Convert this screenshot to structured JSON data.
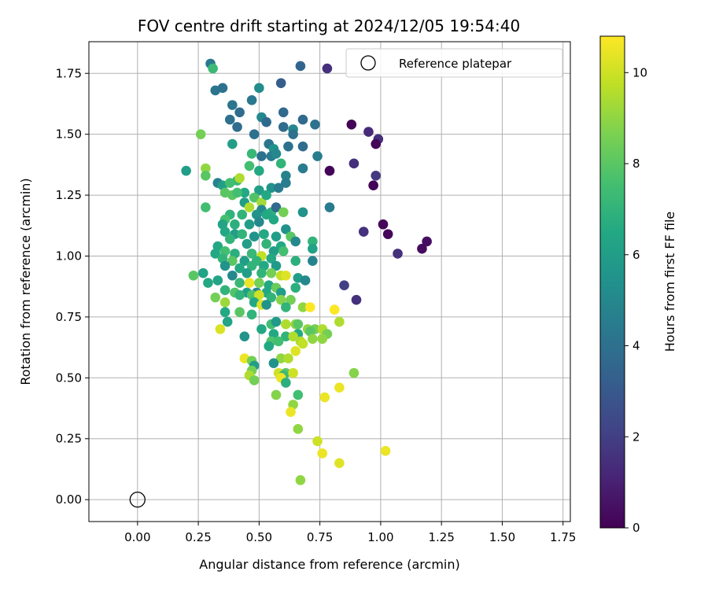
{
  "chart_data": {
    "type": "scatter",
    "title": "FOV centre drift starting at 2024/12/05 19:54:40",
    "xlabel": "Angular distance from reference (arcmin)",
    "ylabel": "Rotation from reference (arcmin)",
    "xlim": [
      -0.2,
      1.78
    ],
    "ylim": [
      -0.09,
      1.88
    ],
    "xticks": [
      0.0,
      0.25,
      0.5,
      0.75,
      1.0,
      1.25,
      1.5,
      1.75
    ],
    "xtick_labels": [
      "0.00",
      "0.25",
      "0.50",
      "0.75",
      "1.00",
      "1.25",
      "1.50",
      "1.75"
    ],
    "yticks": [
      0.0,
      0.25,
      0.5,
      0.75,
      1.0,
      1.25,
      1.5,
      1.75
    ],
    "ytick_labels": [
      "0.00",
      "0.25",
      "0.50",
      "0.75",
      "1.00",
      "1.25",
      "1.50",
      "1.75"
    ],
    "grid": true,
    "legend": {
      "position": "top-right",
      "entries": [
        "Reference platepar"
      ]
    },
    "reference_point": {
      "x": 0.0,
      "y": 0.0
    },
    "colorbar": {
      "label": "Hours from first FF file",
      "colormap": "viridis",
      "range": [
        0,
        10.8
      ],
      "ticks": [
        0,
        2,
        4,
        6,
        8,
        10
      ],
      "tick_labels": [
        "0",
        "2",
        "4",
        "6",
        "8",
        "10"
      ]
    },
    "points": [
      [
        0.3,
        1.79,
        4.3
      ],
      [
        0.31,
        1.77,
        7.3
      ],
      [
        0.67,
        1.78,
        3.5
      ],
      [
        0.78,
        1.77,
        1.5
      ],
      [
        0.59,
        1.71,
        3.2
      ],
      [
        0.5,
        1.69,
        5.2
      ],
      [
        0.32,
        1.68,
        4.2
      ],
      [
        0.35,
        1.69,
        4.0
      ],
      [
        0.47,
        1.64,
        4.3
      ],
      [
        0.39,
        1.62,
        4.2
      ],
      [
        0.42,
        1.59,
        3.8
      ],
      [
        0.6,
        1.59,
        3.7
      ],
      [
        0.38,
        1.56,
        4.0
      ],
      [
        0.51,
        1.57,
        5.0
      ],
      [
        0.41,
        1.53,
        3.8
      ],
      [
        0.53,
        1.55,
        3.7
      ],
      [
        0.6,
        1.53,
        3.8
      ],
      [
        0.64,
        1.52,
        5.0
      ],
      [
        0.68,
        1.56,
        3.7
      ],
      [
        0.73,
        1.54,
        4.0
      ],
      [
        0.88,
        1.54,
        0.1
      ],
      [
        0.95,
        1.51,
        1.3
      ],
      [
        0.26,
        1.5,
        8.5
      ],
      [
        0.48,
        1.5,
        4.0
      ],
      [
        0.64,
        1.5,
        4.0
      ],
      [
        0.99,
        1.48,
        1.5
      ],
      [
        0.98,
        1.46,
        0.1
      ],
      [
        0.39,
        1.46,
        6.0
      ],
      [
        0.54,
        1.46,
        4.2
      ],
      [
        0.56,
        1.44,
        5.5
      ],
      [
        0.62,
        1.45,
        4.0
      ],
      [
        0.68,
        1.45,
        3.8
      ],
      [
        0.51,
        1.41,
        4.0
      ],
      [
        0.55,
        1.41,
        4.5
      ],
      [
        0.57,
        1.42,
        5.0
      ],
      [
        0.47,
        1.42,
        7.2
      ],
      [
        0.74,
        1.41,
        4.5
      ],
      [
        0.59,
        1.38,
        7.0
      ],
      [
        0.89,
        1.38,
        1.5
      ],
      [
        0.2,
        1.35,
        6.0
      ],
      [
        0.28,
        1.36,
        9.0
      ],
      [
        0.46,
        1.37,
        7.5
      ],
      [
        0.5,
        1.35,
        6.5
      ],
      [
        0.79,
        1.35,
        0.1
      ],
      [
        0.68,
        1.36,
        4.5
      ],
      [
        0.61,
        1.33,
        4.8
      ],
      [
        0.41,
        1.31,
        7.2
      ],
      [
        0.28,
        1.33,
        8.0
      ],
      [
        0.33,
        1.3,
        4.8
      ],
      [
        0.98,
        1.33,
        1.8
      ],
      [
        0.35,
        1.29,
        6.0
      ],
      [
        0.38,
        1.3,
        7.5
      ],
      [
        0.42,
        1.32,
        9.5
      ],
      [
        0.44,
        1.26,
        6.5
      ],
      [
        0.5,
        1.27,
        6.0
      ],
      [
        0.55,
        1.28,
        5.5
      ],
      [
        0.58,
        1.28,
        4.5
      ],
      [
        0.61,
        1.3,
        4.5
      ],
      [
        0.97,
        1.29,
        0.1
      ],
      [
        0.36,
        1.26,
        8.0
      ],
      [
        0.39,
        1.25,
        8.0
      ],
      [
        0.41,
        1.26,
        7.5
      ],
      [
        0.48,
        1.24,
        7.8
      ],
      [
        0.51,
        1.22,
        9.3
      ],
      [
        0.53,
        1.25,
        6.5
      ],
      [
        0.44,
        1.22,
        6.0
      ],
      [
        0.46,
        1.2,
        9.5
      ],
      [
        0.51,
        1.19,
        5.0
      ],
      [
        0.55,
        1.18,
        6.8
      ],
      [
        0.57,
        1.2,
        3.7
      ],
      [
        0.28,
        1.2,
        7.5
      ],
      [
        0.38,
        1.17,
        7.0
      ],
      [
        0.36,
        1.15,
        7.6
      ],
      [
        0.43,
        1.17,
        7.0
      ],
      [
        0.49,
        1.17,
        5.5
      ],
      [
        0.53,
        1.17,
        6.5
      ],
      [
        0.6,
        1.18,
        8.5
      ],
      [
        0.68,
        1.18,
        5.5
      ],
      [
        0.79,
        1.2,
        4.5
      ],
      [
        0.35,
        1.13,
        6.3
      ],
      [
        0.4,
        1.13,
        6.8
      ],
      [
        0.46,
        1.13,
        6.0
      ],
      [
        0.5,
        1.14,
        5.0
      ],
      [
        0.56,
        1.15,
        6.5
      ],
      [
        0.61,
        1.11,
        5.5
      ],
      [
        1.01,
        1.13,
        0.2
      ],
      [
        0.36,
        1.1,
        6.5
      ],
      [
        0.4,
        1.09,
        6.0
      ],
      [
        0.43,
        1.09,
        7.0
      ],
      [
        0.48,
        1.08,
        5.5
      ],
      [
        0.52,
        1.09,
        6.5
      ],
      [
        0.57,
        1.08,
        6.0
      ],
      [
        0.63,
        1.08,
        8.0
      ],
      [
        0.65,
        1.06,
        5.0
      ],
      [
        0.38,
        1.07,
        7.0
      ],
      [
        0.93,
        1.1,
        1.5
      ],
      [
        1.03,
        1.09,
        0.2
      ],
      [
        0.33,
        1.04,
        6.5
      ],
      [
        0.45,
        1.05,
        6.0
      ],
      [
        0.53,
        1.05,
        7.0
      ],
      [
        0.59,
        1.04,
        6.5
      ],
      [
        0.72,
        1.06,
        7.0
      ],
      [
        0.72,
        1.03,
        6.2
      ],
      [
        1.19,
        1.06,
        0.4
      ],
      [
        1.17,
        1.03,
        0.3
      ],
      [
        0.32,
        1.01,
        6.5
      ],
      [
        0.36,
        1.02,
        7.5
      ],
      [
        0.4,
        1.01,
        6.8
      ],
      [
        0.47,
        1.01,
        7.2
      ],
      [
        0.51,
        1.0,
        9.8
      ],
      [
        0.56,
        1.02,
        6.0
      ],
      [
        0.6,
        1.02,
        7.5
      ],
      [
        1.07,
        1.01,
        1.5
      ],
      [
        0.35,
        0.99,
        7.0
      ],
      [
        0.39,
        0.98,
        8.0
      ],
      [
        0.44,
        0.98,
        6.0
      ],
      [
        0.49,
        0.98,
        7.0
      ],
      [
        0.55,
        0.99,
        6.5
      ],
      [
        0.65,
        0.98,
        6.8
      ],
      [
        0.72,
        0.98,
        4.8
      ],
      [
        0.36,
        0.96,
        5.5
      ],
      [
        0.42,
        0.95,
        6.5
      ],
      [
        0.47,
        0.96,
        7.0
      ],
      [
        0.52,
        0.96,
        6.5
      ],
      [
        0.57,
        0.96,
        5.8
      ],
      [
        0.27,
        0.93,
        6.2
      ],
      [
        0.23,
        0.92,
        8.0
      ],
      [
        0.39,
        0.92,
        5.0
      ],
      [
        0.45,
        0.93,
        6.0
      ],
      [
        0.51,
        0.93,
        7.0
      ],
      [
        0.55,
        0.93,
        8.5
      ],
      [
        0.59,
        0.92,
        9.8
      ],
      [
        0.61,
        0.92,
        10.3
      ],
      [
        0.66,
        0.91,
        6.0
      ],
      [
        0.69,
        0.9,
        5.0
      ],
      [
        0.29,
        0.89,
        6.5
      ],
      [
        0.33,
        0.9,
        6.3
      ],
      [
        0.42,
        0.89,
        7.2
      ],
      [
        0.46,
        0.89,
        10.5
      ],
      [
        0.5,
        0.89,
        8.5
      ],
      [
        0.54,
        0.88,
        6.5
      ],
      [
        0.57,
        0.87,
        8.3
      ],
      [
        0.65,
        0.87,
        6.8
      ],
      [
        0.85,
        0.88,
        2.0
      ],
      [
        0.36,
        0.86,
        7.0
      ],
      [
        0.4,
        0.85,
        7.8
      ],
      [
        0.45,
        0.85,
        6.0
      ],
      [
        0.49,
        0.85,
        5.0
      ],
      [
        0.53,
        0.85,
        6.5
      ],
      [
        0.59,
        0.85,
        6.0
      ],
      [
        0.32,
        0.83,
        8.5
      ],
      [
        0.42,
        0.84,
        7.0
      ],
      [
        0.47,
        0.84,
        7.8
      ],
      [
        0.5,
        0.84,
        10.0
      ],
      [
        0.55,
        0.83,
        7.0
      ],
      [
        0.59,
        0.82,
        8.8
      ],
      [
        0.63,
        0.82,
        8.5
      ],
      [
        0.9,
        0.82,
        1.5
      ],
      [
        0.36,
        0.81,
        9.2
      ],
      [
        0.48,
        0.81,
        6.5
      ],
      [
        0.51,
        0.8,
        10.2
      ],
      [
        0.53,
        0.8,
        5.5
      ],
      [
        0.61,
        0.79,
        7.0
      ],
      [
        0.68,
        0.79,
        9.0
      ],
      [
        0.71,
        0.79,
        10.8
      ],
      [
        0.81,
        0.78,
        10.8
      ],
      [
        0.36,
        0.77,
        6.5
      ],
      [
        0.42,
        0.77,
        8.0
      ],
      [
        0.47,
        0.76,
        7.0
      ],
      [
        0.37,
        0.73,
        6.3
      ],
      [
        0.55,
        0.72,
        7.5
      ],
      [
        0.57,
        0.73,
        5.8
      ],
      [
        0.61,
        0.72,
        9.5
      ],
      [
        0.65,
        0.72,
        9.0
      ],
      [
        0.66,
        0.72,
        8.0
      ],
      [
        0.7,
        0.7,
        9.0
      ],
      [
        0.73,
        0.7,
        8.5
      ],
      [
        0.76,
        0.7,
        9.5
      ],
      [
        0.83,
        0.73,
        9.5
      ],
      [
        0.34,
        0.7,
        10.2
      ],
      [
        0.51,
        0.7,
        6.5
      ],
      [
        0.56,
        0.68,
        6.5
      ],
      [
        0.61,
        0.67,
        7.0
      ],
      [
        0.66,
        0.68,
        6.5
      ],
      [
        0.71,
        0.69,
        8.0
      ],
      [
        0.78,
        0.68,
        8.5
      ],
      [
        0.44,
        0.67,
        5.5
      ],
      [
        0.55,
        0.65,
        7.8
      ],
      [
        0.58,
        0.65,
        7.5
      ],
      [
        0.64,
        0.67,
        9.5
      ],
      [
        0.67,
        0.65,
        9.5
      ],
      [
        0.72,
        0.66,
        9.0
      ],
      [
        0.76,
        0.66,
        9.0
      ],
      [
        0.54,
        0.63,
        6.5
      ],
      [
        0.65,
        0.61,
        10.3
      ],
      [
        0.68,
        0.64,
        9.8
      ],
      [
        0.59,
        0.58,
        9.0
      ],
      [
        0.62,
        0.58,
        9.5
      ],
      [
        0.44,
        0.58,
        10.5
      ],
      [
        0.47,
        0.57,
        8.5
      ],
      [
        0.48,
        0.55,
        6.0
      ],
      [
        0.56,
        0.56,
        5.5
      ],
      [
        0.47,
        0.53,
        8.5
      ],
      [
        0.58,
        0.52,
        10.0
      ],
      [
        0.61,
        0.52,
        8.0
      ],
      [
        0.64,
        0.52,
        10.0
      ],
      [
        0.6,
        0.51,
        7.3
      ],
      [
        0.89,
        0.52,
        8.8
      ],
      [
        0.46,
        0.51,
        9.5
      ],
      [
        0.48,
        0.49,
        8.5
      ],
      [
        0.59,
        0.5,
        10.5
      ],
      [
        0.61,
        0.48,
        6.8
      ],
      [
        0.83,
        0.46,
        10.5
      ],
      [
        0.57,
        0.43,
        8.8
      ],
      [
        0.66,
        0.43,
        7.5
      ],
      [
        0.77,
        0.42,
        10.5
      ],
      [
        0.64,
        0.39,
        9.0
      ],
      [
        0.63,
        0.36,
        10.5
      ],
      [
        0.66,
        0.29,
        9.0
      ],
      [
        0.74,
        0.24,
        10.0
      ],
      [
        0.76,
        0.19,
        10.5
      ],
      [
        0.83,
        0.15,
        10.3
      ],
      [
        1.02,
        0.2,
        10.5
      ],
      [
        0.67,
        0.08,
        9.0
      ]
    ]
  }
}
